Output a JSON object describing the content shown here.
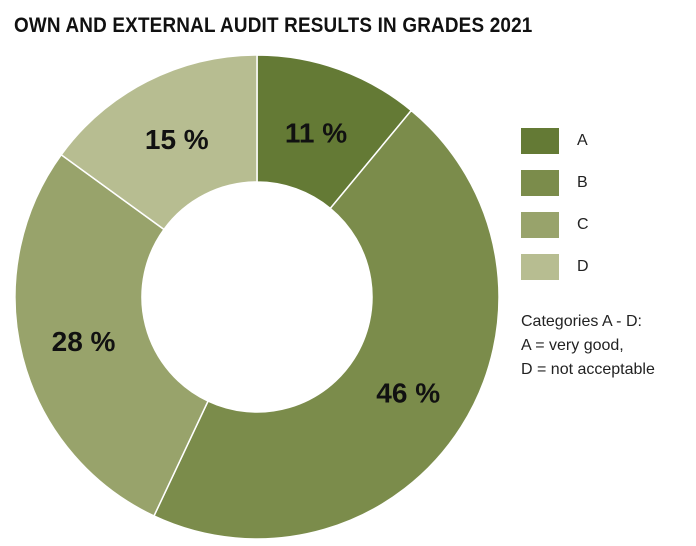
{
  "chart_data": {
    "type": "pie",
    "title": "OWN AND EXTERNAL AUDIT RESULTS IN GRADES 2021",
    "categories": [
      "A",
      "B",
      "C",
      "D"
    ],
    "values": [
      11,
      46,
      28,
      15
    ],
    "labels": [
      "11 %",
      "46 %",
      "28 %",
      "15 %"
    ],
    "colors": [
      "#647a35",
      "#7b8c4b",
      "#98a36b",
      "#b7bd91"
    ],
    "donut": true,
    "legend_position": "right"
  },
  "note": {
    "line1": "Categories A - D:",
    "line2": "A = very good,",
    "line3": "D = not acceptable"
  }
}
